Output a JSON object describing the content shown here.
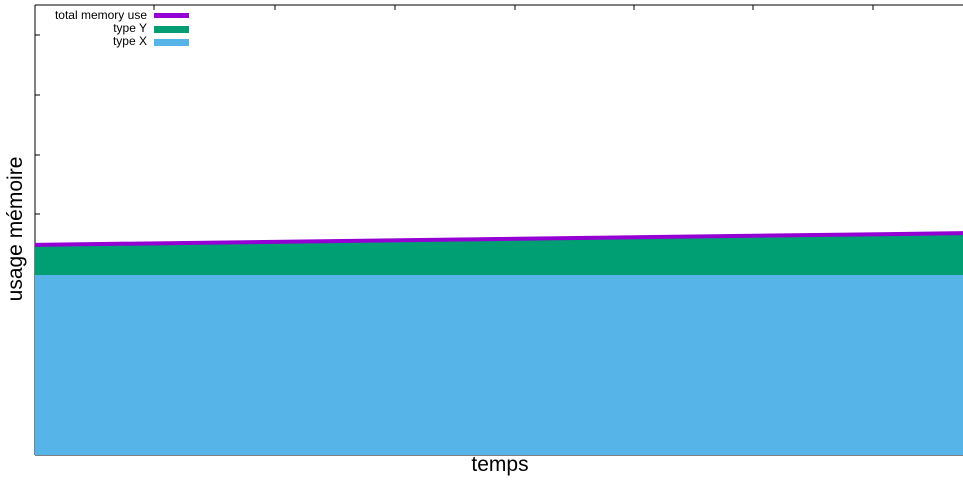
{
  "chart_data": {
    "type": "area",
    "stacked": true,
    "title": "",
    "xlabel": "temps",
    "ylabel": "usage mémoire",
    "x": [
      0,
      1
    ],
    "xlim": [
      0,
      1
    ],
    "ylim": [
      0,
      1
    ],
    "grid": false,
    "legend_position": "top-left",
    "series": [
      {
        "name": "type X",
        "kind": "area",
        "color": "#56B4E9",
        "values": [
          0.4,
          0.4
        ]
      },
      {
        "name": "type Y",
        "kind": "area",
        "color": "#009E73",
        "values": [
          0.067,
          0.093
        ]
      },
      {
        "name": "total memory use",
        "kind": "line",
        "color": "#9400D3",
        "values": [
          0.467,
          0.493
        ]
      }
    ]
  }
}
